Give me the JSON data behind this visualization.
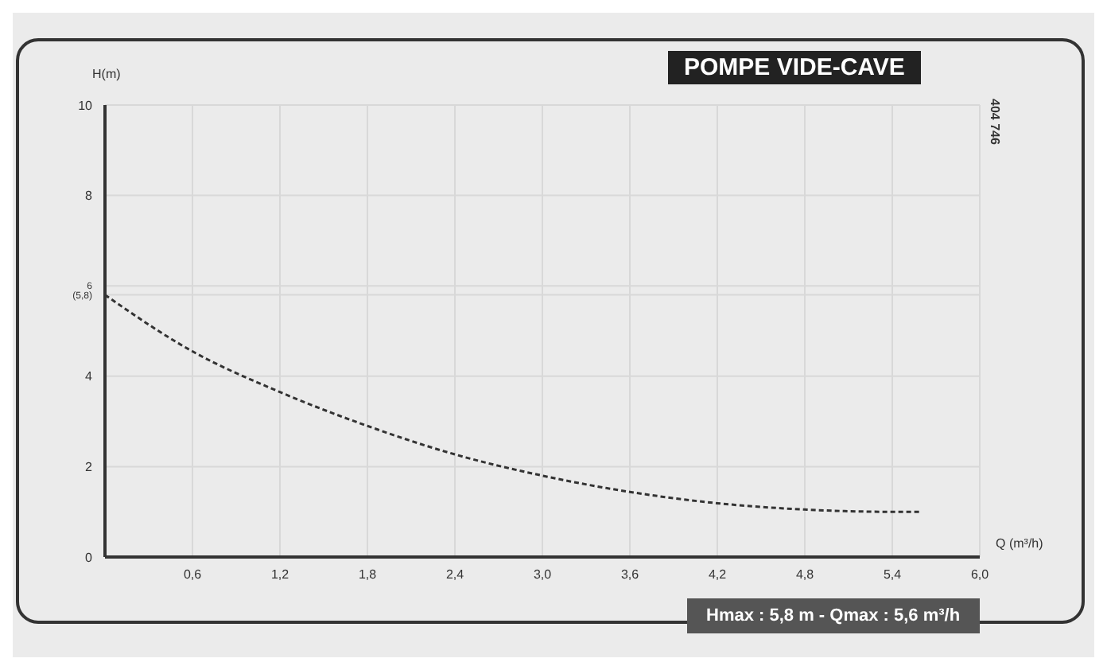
{
  "chart_data": {
    "type": "line",
    "title": "POMPE VIDE-CAVE",
    "xlabel": "Q (m³/h)",
    "ylabel": "H(m)",
    "x": [
      0,
      0.6,
      1.2,
      1.8,
      2.4,
      3.0,
      3.6,
      4.2,
      4.8,
      5.4,
      5.6
    ],
    "series": [
      {
        "color": "#333333",
        "values": [
          5.8,
          4.55,
          3.65,
          2.9,
          2.27,
          1.8,
          1.44,
          1.19,
          1.05,
          1.0,
          1.0
        ]
      }
    ],
    "xlim": [
      0,
      6
    ],
    "ylim": [
      0,
      10
    ],
    "xticks": [
      {
        "value": 0.6,
        "label": "0,6"
      },
      {
        "value": 1.2,
        "label": "1,2"
      },
      {
        "value": 1.8,
        "label": "1,8"
      },
      {
        "value": 2.4,
        "label": "2,4"
      },
      {
        "value": 3.0,
        "label": "3,0"
      },
      {
        "value": 3.6,
        "label": "3,6"
      },
      {
        "value": 4.2,
        "label": "4,2"
      },
      {
        "value": 4.8,
        "label": "4,8"
      },
      {
        "value": 5.4,
        "label": "5,4"
      },
      {
        "value": 6.0,
        "label": "6,0"
      }
    ],
    "yticks": [
      0,
      2,
      4,
      {
        "value": 5.8,
        "label": "(5,8)"
      },
      6,
      8,
      10
    ],
    "grid": true,
    "line_style": "dashed",
    "marker": "none",
    "annotations": [
      "404 746",
      "Hmax : 5,8 m - Qmax : 5,6 m³/h"
    ]
  }
}
